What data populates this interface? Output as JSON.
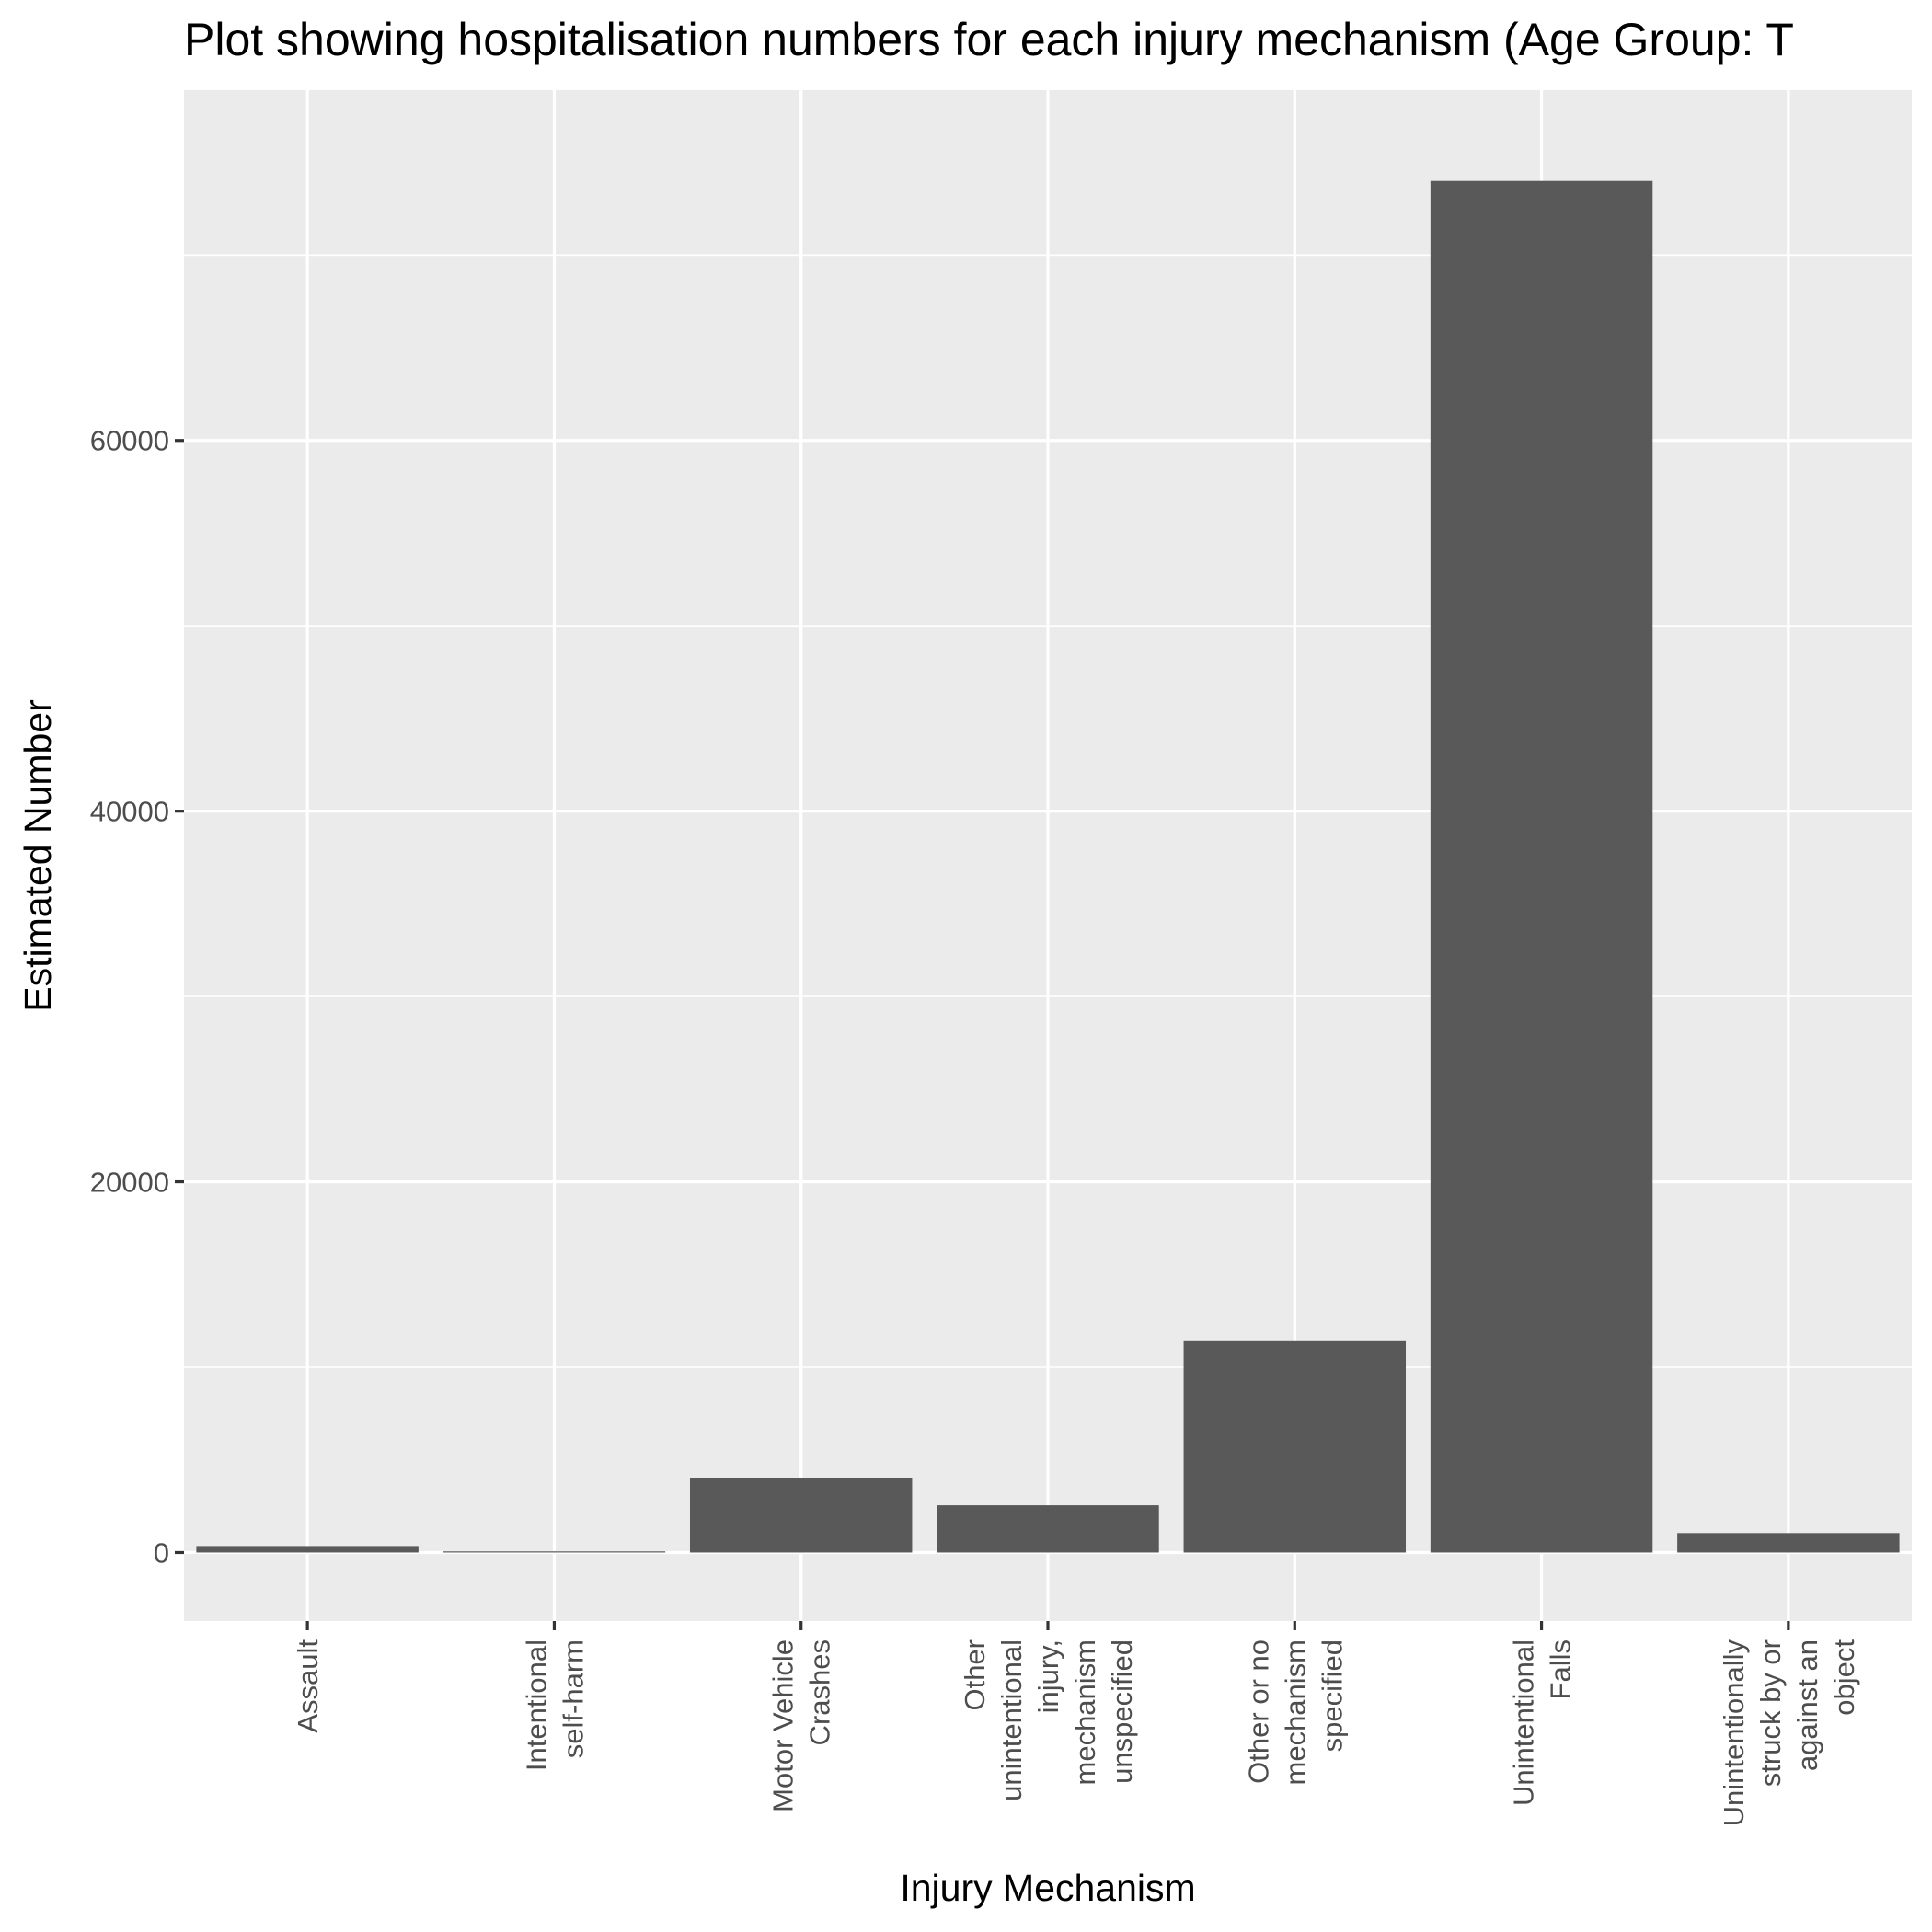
{
  "chart_data": {
    "type": "bar",
    "title": "Plot showing hospitalisation numbers for each injury mechanism (Age Group: T",
    "xlabel": "Injury Mechanism",
    "ylabel": "Estimated Number",
    "categories": [
      "Assault",
      "Intentional self-harm",
      "Motor Vehicle Crashes",
      "Other unintentional injury, mechanism unspecified",
      "Other or no mechanism specified",
      "Unintentional Falls",
      "Unintentionally struck by or against an object"
    ],
    "category_label_lines": [
      [
        "Assault"
      ],
      [
        "Intentional",
        "self-harm"
      ],
      [
        "Motor Vehicle",
        "Crashes"
      ],
      [
        "Other",
        "unintentional",
        "injury,",
        "mechanism",
        "unspecified"
      ],
      [
        "Other or no",
        "mechanism",
        "specified"
      ],
      [
        "Unintentional",
        "Falls"
      ],
      [
        "Unintentionally",
        "struck by or",
        "against an",
        "object"
      ]
    ],
    "values": [
      350,
      60,
      4000,
      2550,
      11400,
      74000,
      1050
    ],
    "ylim": [
      -3700,
      78900
    ],
    "yticks": [
      0,
      20000,
      40000,
      60000
    ],
    "ytick_labels": [
      "0",
      "20000",
      "40000",
      "60000"
    ],
    "y_minor_ticks": [
      10000,
      30000,
      50000,
      70000
    ],
    "grid": true,
    "legend": "none",
    "colors": {
      "bar": "#595959",
      "panel_background": "#EBEBEB",
      "grid": "#FFFFFF",
      "tick_text": "#4D4D4D"
    }
  }
}
